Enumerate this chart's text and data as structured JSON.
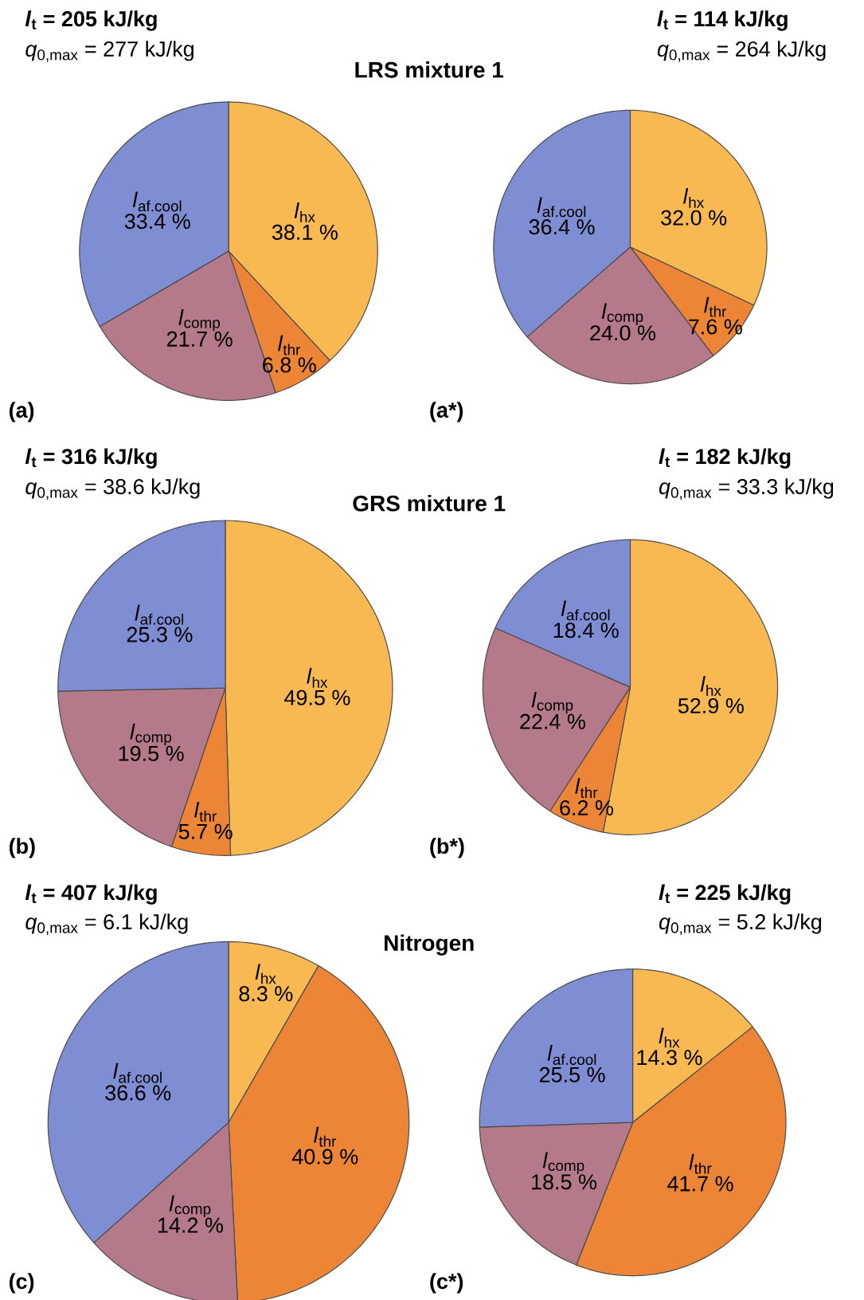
{
  "chart_data": [
    {
      "type": "pie",
      "title": "LRS mixture 1",
      "annotations": [
        "*l*$_{t}$ = 205 kJ/kg",
        "*q*$_{0,max}$ = 277 kJ/kg",
        "(a)"
      ],
      "categories": [
        "*l*$_{hx}$",
        "*l*$_{thr}$",
        "*l*$_{comp}$",
        "*l*$_{af.cool}$"
      ],
      "values": [
        38.1,
        6.8,
        21.7,
        33.4
      ],
      "value_labels": [
        "38.1 %",
        "6.8 %",
        "21.7 %",
        "33.4 %"
      ],
      "colors": [
        "#f9b952",
        "#ec8535",
        "#b57a8a",
        "#7f8dd3"
      ]
    },
    {
      "type": "pie",
      "annotations": [
        "*l*$_{t}$ = 114 kJ/kg",
        "*q*$_{0,max}$ = 264 kJ/kg",
        "(a*)"
      ],
      "categories": [
        "*l*$_{hx}$",
        "*l*$_{thr}$",
        "*l*$_{comp}$",
        "*l*$_{af.cool}$"
      ],
      "values": [
        32.0,
        7.6,
        24.0,
        36.4
      ],
      "value_labels": [
        "32.0 %",
        "7.6 %",
        "24.0 %",
        "36.4 %"
      ],
      "colors": [
        "#f9b952",
        "#ec8535",
        "#b57a8a",
        "#7f8dd3"
      ]
    },
    {
      "type": "pie",
      "title": "GRS mixture 1",
      "annotations": [
        "*l*$_{t}$ = 316 kJ/kg",
        "*q*$_{0,max}$ = 38.6 kJ/kg",
        "(b)"
      ],
      "categories": [
        "*l*$_{hx}$",
        "*l*$_{thr}$",
        "*l*$_{comp}$",
        "*l*$_{af.cool}$"
      ],
      "values": [
        49.5,
        5.7,
        19.5,
        25.3
      ],
      "value_labels": [
        "49.5 %",
        "5.7 %",
        "19.5 %",
        "25.3 %"
      ],
      "colors": [
        "#f9b952",
        "#ec8535",
        "#b57a8a",
        "#7f8dd3"
      ]
    },
    {
      "type": "pie",
      "annotations": [
        "*l*$_{t}$ = 182 kJ/kg",
        "*q*$_{0,max}$ = 33.3 kJ/kg",
        "(b*)"
      ],
      "categories": [
        "*l*$_{hx}$",
        "*l*$_{thr}$",
        "*l*$_{comp}$",
        "*l*$_{af.cool}$"
      ],
      "values": [
        52.9,
        6.2,
        22.4,
        18.4
      ],
      "value_labels": [
        "52.9 %",
        "6.2 %",
        "22.4 %",
        "18.4 %"
      ],
      "colors": [
        "#f9b952",
        "#ec8535",
        "#b57a8a",
        "#7f8dd3"
      ]
    },
    {
      "type": "pie",
      "title": "Nitrogen",
      "annotations": [
        "*l*$_{t}$ = 407 kJ/kg",
        "*q*$_{0,max}$ = 6.1 kJ/kg",
        "(c)"
      ],
      "categories": [
        "*l*$_{hx}$",
        "*l*$_{thr}$",
        "*l*$_{comp}$",
        "*l*$_{af.cool}$"
      ],
      "values": [
        8.3,
        40.9,
        14.2,
        36.6
      ],
      "value_labels": [
        "8.3 %",
        "40.9 %",
        "14.2 %",
        "36.6 %"
      ],
      "colors": [
        "#f9b952",
        "#ec8535",
        "#b57a8a",
        "#7f8dd3"
      ]
    },
    {
      "type": "pie",
      "annotations": [
        "*l*$_{t}$ = 225 kJ/kg",
        "*q*$_{0,max}$ = 5.2 kJ/kg",
        "(c*)"
      ],
      "categories": [
        "*l*$_{hx}$",
        "*l*$_{thr}$",
        "*l*$_{comp}$",
        "*l*$_{af.cool}$"
      ],
      "values": [
        14.3,
        41.7,
        18.5,
        25.5
      ],
      "value_labels": [
        "14.3 %",
        "41.7 %",
        "18.5 %",
        "25.5 %"
      ],
      "colors": [
        "#f9b952",
        "#ec8535",
        "#b57a8a",
        "#7f8dd3"
      ]
    }
  ]
}
